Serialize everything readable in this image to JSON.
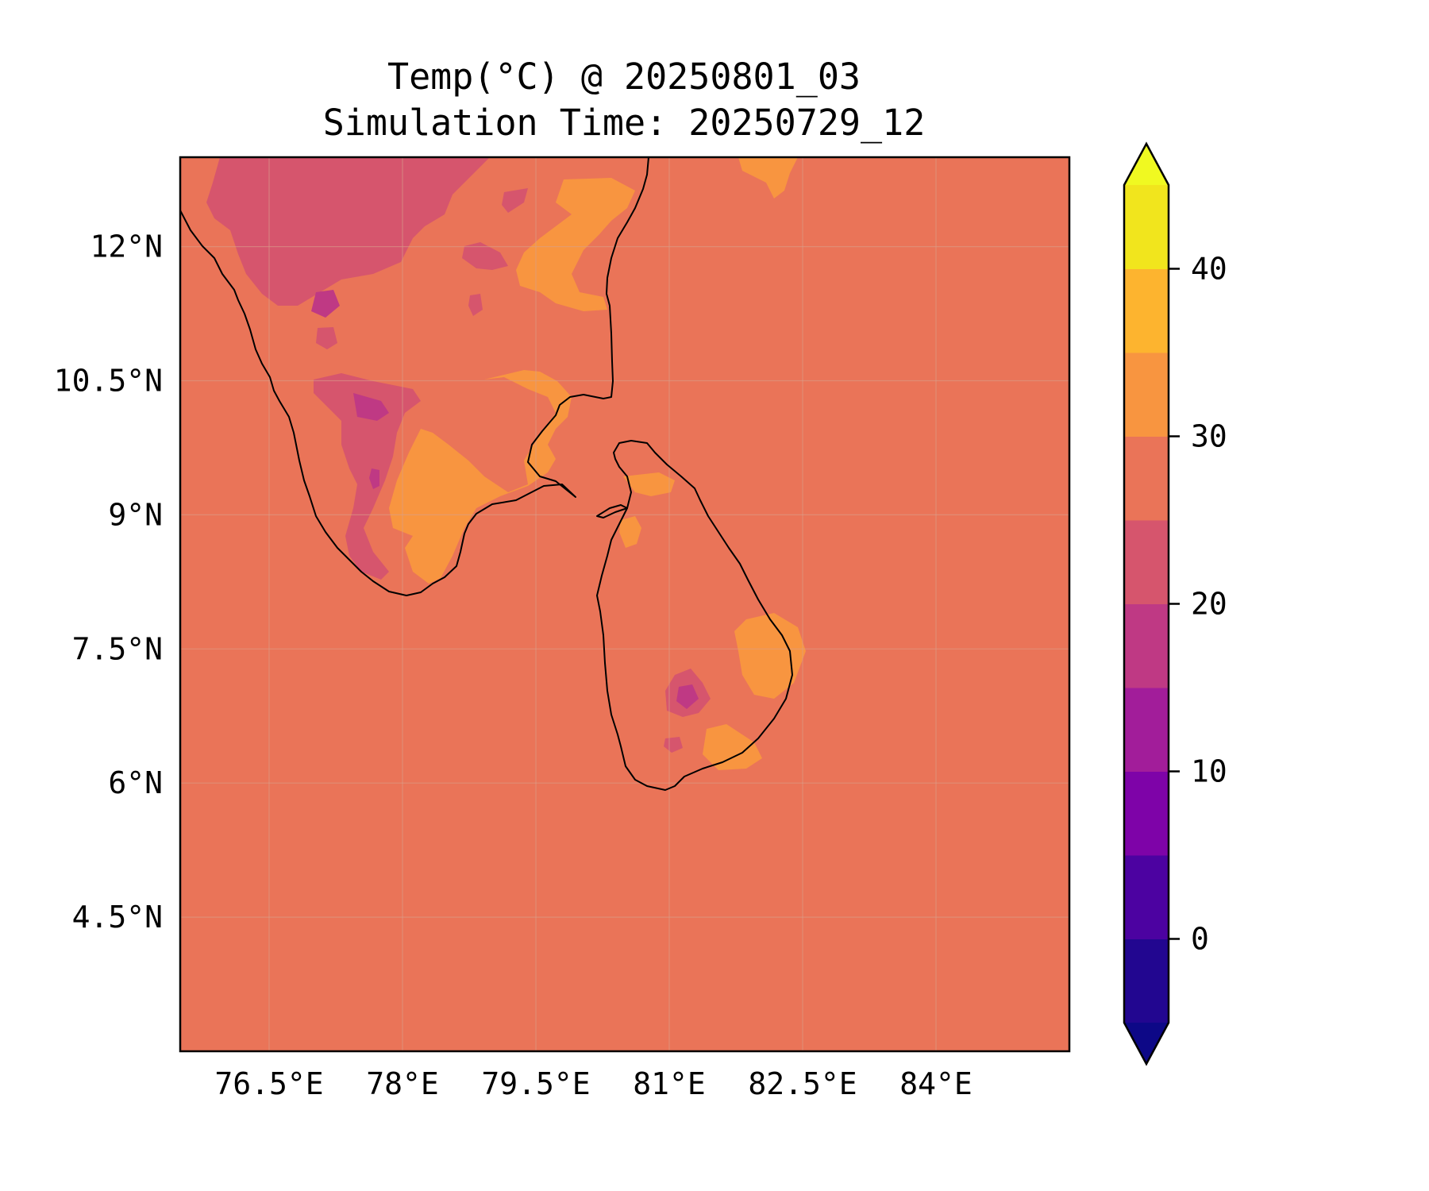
{
  "title": {
    "line1": "Temp(°C) @ 20250801_03",
    "line2": "Simulation Time: 20250729_12"
  },
  "map": {
    "lon_range": [
      75.5,
      85.5
    ],
    "lat_range": [
      3.0,
      13.0
    ],
    "background_color": "#ea7458",
    "x_ticks": [
      {
        "value": 76.5,
        "label": "76.5°E"
      },
      {
        "value": 78.0,
        "label": "78°E"
      },
      {
        "value": 79.5,
        "label": "79.5°E"
      },
      {
        "value": 81.0,
        "label": "81°E"
      },
      {
        "value": 82.5,
        "label": "82.5°E"
      },
      {
        "value": 84.0,
        "label": "84°E"
      }
    ],
    "y_ticks": [
      {
        "value": 12.0,
        "label": "12°N"
      },
      {
        "value": 10.5,
        "label": "10.5°N"
      },
      {
        "value": 9.0,
        "label": "9°N"
      },
      {
        "value": 7.5,
        "label": "7.5°N"
      },
      {
        "value": 6.0,
        "label": "6°N"
      },
      {
        "value": 4.5,
        "label": "4.5°N"
      }
    ]
  },
  "colorbar": {
    "range": [
      -5,
      45
    ],
    "bands": [
      {
        "from": -5,
        "to": 0,
        "color": "#220690"
      },
      {
        "from": 0,
        "to": 5,
        "color": "#4c02a1"
      },
      {
        "from": 5,
        "to": 10,
        "color": "#7e03a8"
      },
      {
        "from": 10,
        "to": 15,
        "color": "#a21d9a"
      },
      {
        "from": 15,
        "to": 20,
        "color": "#bf3984"
      },
      {
        "from": 20,
        "to": 25,
        "color": "#d6556d"
      },
      {
        "from": 25,
        "to": 30,
        "color": "#ea7458"
      },
      {
        "from": 30,
        "to": 35,
        "color": "#f89540"
      },
      {
        "from": 35,
        "to": 40,
        "color": "#fdb42f"
      },
      {
        "from": 40,
        "to": 45,
        "color": "#f1e51d"
      }
    ],
    "extend_low_color": "#0d0887",
    "extend_high_color": "#f0f921",
    "ticks": [
      {
        "value": 0,
        "label": "0"
      },
      {
        "value": 10,
        "label": "10"
      },
      {
        "value": 20,
        "label": "20"
      },
      {
        "value": 30,
        "label": "30"
      },
      {
        "value": 40,
        "label": "40"
      }
    ]
  }
}
